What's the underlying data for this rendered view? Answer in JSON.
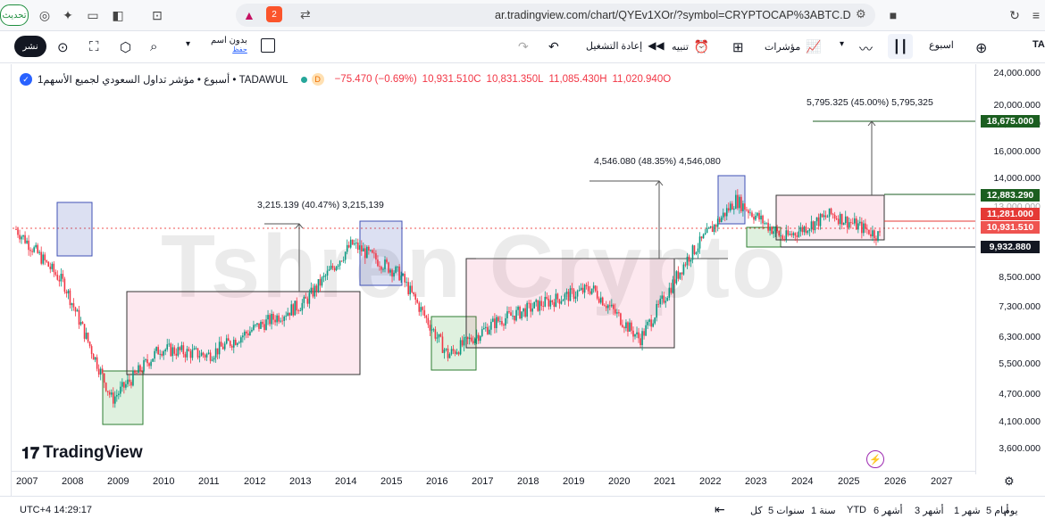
{
  "browser": {
    "update_label": "تحديث",
    "url": "ar.tradingview.com/chart/QYEv1XOr/?symbol=CRYPTOCAP%3ABTC.D",
    "shield_badge": "2"
  },
  "toolbar": {
    "share_label": "نشر",
    "layout_label": "بدون اسم",
    "layout_sublabel": "حفظ",
    "replay_label": "إعادة التشغيل",
    "alert_label": "تنبيه",
    "indicators_label": "مؤشرات",
    "interval_label": "اسبوع",
    "symbol_partial": "TA"
  },
  "legend": {
    "symbol": "1أسبوع • مؤشر تداول السعودي لجميع الأسهم • TADAWUL",
    "badge": "D",
    "change": "−75.470 (−0.69%)",
    "close": "10,931.510C",
    "low": "10,831.350L",
    "high": "11,085.430H",
    "open": "11,020.940O"
  },
  "watermark": "Tshren Crypto",
  "logo_text": "TradingView",
  "annotations": {
    "a1": "3,215.139 (40.47%) 3,215,139",
    "a2": "4,546.080 (48.35%) 4,546,080",
    "a3": "5,795.325 (45.00%) 5,795,325"
  },
  "price_axis": [
    "24,000.000",
    "20,000.000",
    "18,000.000",
    "16,000.000",
    "14,000.000",
    "13,000.000",
    "8,500.000",
    "7,300.000",
    "6,300.000",
    "5,500.000",
    "4,700.000",
    "4,100.000",
    "3,600.000"
  ],
  "price_tags": [
    {
      "label": "18,675.000",
      "color": "#1b5e20"
    },
    {
      "label": "12,883.290",
      "color": "#1b5e20"
    },
    {
      "label": "11,281.000",
      "color": "#e53935"
    },
    {
      "label": "10,931.510",
      "color": "#ef5350"
    },
    {
      "label": "9,932.880",
      "color": "#131722"
    }
  ],
  "time_axis": [
    "2007",
    "2008",
    "2009",
    "2010",
    "2011",
    "2012",
    "2013",
    "2014",
    "2015",
    "2016",
    "2017",
    "2018",
    "2019",
    "2020",
    "2021",
    "2022",
    "2023",
    "2024",
    "2025",
    "2026",
    "2027"
  ],
  "bottom": {
    "time": "UTC+4 14:29:17",
    "ranges": [
      "يوم",
      "5 أيام",
      "1 شهر",
      "3 أشهر",
      "6 أشهر",
      "YTD",
      "1 سنة",
      "5 سنوات",
      "كل"
    ]
  },
  "chart_data": {
    "type": "candlestick",
    "title": "1أسبوع • مؤشر تداول السعودي لجميع الأسهم • TADAWUL",
    "x": [
      "2007",
      "2008",
      "2009",
      "2010",
      "2011",
      "2012",
      "2013",
      "2014",
      "2015",
      "2016",
      "2017",
      "2018",
      "2019",
      "2020",
      "2021",
      "2022",
      "2023",
      "2024",
      "2025"
    ],
    "series": [
      {
        "name": "TADAWUL",
        "values": [
          11300,
          8600,
          4800,
          6200,
          6000,
          6900,
          7800,
          10500,
          9000,
          6000,
          7100,
          7800,
          8400,
          6500,
          9800,
          13100,
          10800,
          12200,
          10931.51
        ]
      }
    ],
    "ylabel": "",
    "ylim": [
      3400,
      25000
    ],
    "scale": "log",
    "ohlc_last": {
      "open": 11020.94,
      "high": 11085.43,
      "low": 10831.35,
      "close": 10931.51
    },
    "levels": [
      18675,
      12883.29,
      11281,
      10931.51,
      9932.88
    ],
    "measurements": [
      {
        "value": 3215.139,
        "percent": 40.47
      },
      {
        "value": 4546.08,
        "percent": 48.35
      },
      {
        "value": 5795.325,
        "percent": 45.0
      }
    ]
  }
}
